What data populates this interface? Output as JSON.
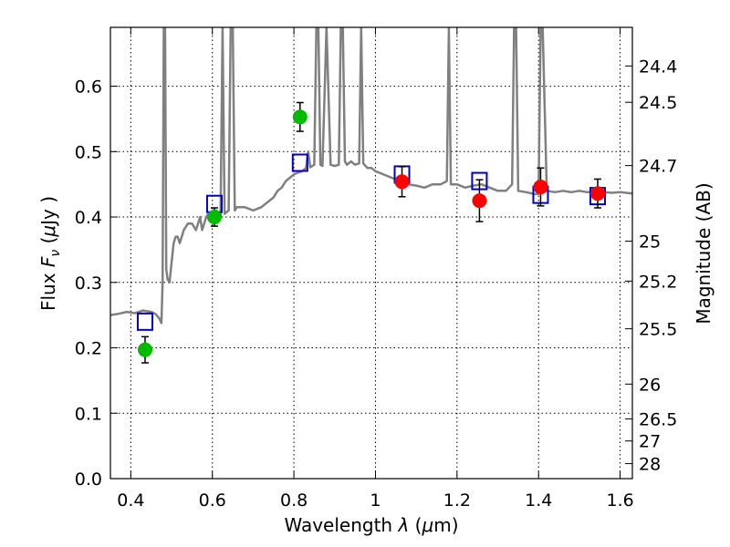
{
  "chart_data": {
    "type": "scatter",
    "xlabel_parts": [
      "Wavelength  ",
      "λ",
      " (",
      "μ",
      "m)"
    ],
    "ylabel_parts": [
      "Flux  ",
      "F",
      "ν",
      "  (",
      "μ",
      "Jy )"
    ],
    "y2label": "Magnitude (AB)",
    "xlim": [
      0.35,
      1.63
    ],
    "ylim": [
      0.0,
      0.69
    ],
    "grid": true,
    "x_ticks": [
      0.4,
      0.6,
      0.8,
      1.0,
      1.2,
      1.4,
      1.6
    ],
    "x_tick_labels": [
      "0.4",
      "0.6",
      "0.8",
      "1",
      "1.2",
      "1.4",
      "1.6"
    ],
    "y_ticks": [
      0.0,
      0.1,
      0.2,
      0.3,
      0.4,
      0.5,
      0.6
    ],
    "y_tick_labels": [
      "0.0",
      "0.1",
      "0.2",
      "0.3",
      "0.4",
      "0.5",
      "0.6"
    ],
    "mag_ticks": [
      24.4,
      24.5,
      24.7,
      25,
      25.2,
      25.5,
      26,
      26.5,
      27,
      28
    ],
    "mag_tick_labels": [
      "24.4",
      "24.5",
      "24.7",
      "25",
      "25.2",
      "25.5",
      "26",
      "26.5",
      "27",
      "28"
    ],
    "series": [
      {
        "kind": "line",
        "color": "#808080",
        "x": [
          0.35,
          0.37,
          0.39,
          0.41,
          0.43,
          0.45,
          0.46,
          0.47,
          0.475,
          0.478,
          0.481,
          0.484,
          0.487,
          0.49,
          0.495,
          0.5,
          0.505,
          0.51,
          0.515,
          0.52,
          0.53,
          0.54,
          0.55,
          0.56,
          0.57,
          0.575,
          0.58,
          0.585,
          0.59,
          0.6,
          0.61,
          0.62,
          0.625,
          0.63,
          0.64,
          0.645,
          0.65,
          0.655,
          0.66,
          0.68,
          0.7,
          0.72,
          0.73,
          0.74,
          0.75,
          0.76,
          0.77,
          0.78,
          0.79,
          0.8,
          0.81,
          0.82,
          0.83,
          0.835,
          0.84,
          0.85,
          0.855,
          0.86,
          0.865,
          0.87,
          0.88,
          0.89,
          0.9,
          0.91,
          0.915,
          0.92,
          0.925,
          0.93,
          0.94,
          0.95,
          0.96,
          0.965,
          0.97,
          0.98,
          0.99,
          1.0,
          1.02,
          1.04,
          1.06,
          1.08,
          1.1,
          1.12,
          1.14,
          1.16,
          1.175,
          1.18,
          1.185,
          1.2,
          1.22,
          1.24,
          1.26,
          1.28,
          1.3,
          1.32,
          1.335,
          1.34,
          1.345,
          1.35,
          1.37,
          1.39,
          1.4,
          1.405,
          1.41,
          1.42,
          1.44,
          1.46,
          1.48,
          1.5,
          1.52,
          1.54,
          1.56,
          1.58,
          1.6,
          1.63
        ],
        "y": [
          0.25,
          0.252,
          0.255,
          0.253,
          0.257,
          0.255,
          0.252,
          0.245,
          0.238,
          0.3,
          0.69,
          0.69,
          0.32,
          0.305,
          0.3,
          0.33,
          0.36,
          0.37,
          0.37,
          0.36,
          0.38,
          0.39,
          0.39,
          0.38,
          0.4,
          0.38,
          0.39,
          0.4,
          0.405,
          0.405,
          0.41,
          0.4,
          0.69,
          0.405,
          0.41,
          0.69,
          0.69,
          0.41,
          0.415,
          0.415,
          0.41,
          0.415,
          0.42,
          0.425,
          0.43,
          0.44,
          0.445,
          0.455,
          0.46,
          0.465,
          0.468,
          0.47,
          0.475,
          0.5,
          0.476,
          0.48,
          0.69,
          0.69,
          0.48,
          0.478,
          0.69,
          0.48,
          0.478,
          0.48,
          0.69,
          0.69,
          0.485,
          0.48,
          0.485,
          0.48,
          0.482,
          0.69,
          0.482,
          0.475,
          0.475,
          0.47,
          0.465,
          0.46,
          0.455,
          0.45,
          0.448,
          0.445,
          0.45,
          0.45,
          0.455,
          0.69,
          0.45,
          0.45,
          0.445,
          0.448,
          0.45,
          0.445,
          0.44,
          0.44,
          0.45,
          0.69,
          0.69,
          0.44,
          0.438,
          0.435,
          0.435,
          0.69,
          0.69,
          0.44,
          0.438,
          0.44,
          0.438,
          0.44,
          0.438,
          0.44,
          0.438,
          0.437,
          0.438,
          0.436
        ]
      },
      {
        "kind": "open-square",
        "color": "#0000cc",
        "x": [
          0.435,
          0.605,
          0.815,
          1.065,
          1.255,
          1.405,
          1.545
        ],
        "y": [
          0.24,
          0.42,
          0.483,
          0.465,
          0.455,
          0.434,
          0.432
        ]
      },
      {
        "kind": "filled-circle",
        "color": "#00bb00",
        "x": [
          0.435,
          0.605,
          0.815
        ],
        "y": [
          0.197,
          0.4,
          0.553
        ],
        "yerr": [
          0.02,
          0.014,
          0.022
        ]
      },
      {
        "kind": "filled-circle",
        "color": "#ff0000",
        "x": [
          1.065,
          1.255,
          1.405,
          1.545
        ],
        "y": [
          0.454,
          0.425,
          0.446,
          0.436
        ],
        "yerr": [
          0.023,
          0.032,
          0.029,
          0.022
        ]
      }
    ]
  }
}
